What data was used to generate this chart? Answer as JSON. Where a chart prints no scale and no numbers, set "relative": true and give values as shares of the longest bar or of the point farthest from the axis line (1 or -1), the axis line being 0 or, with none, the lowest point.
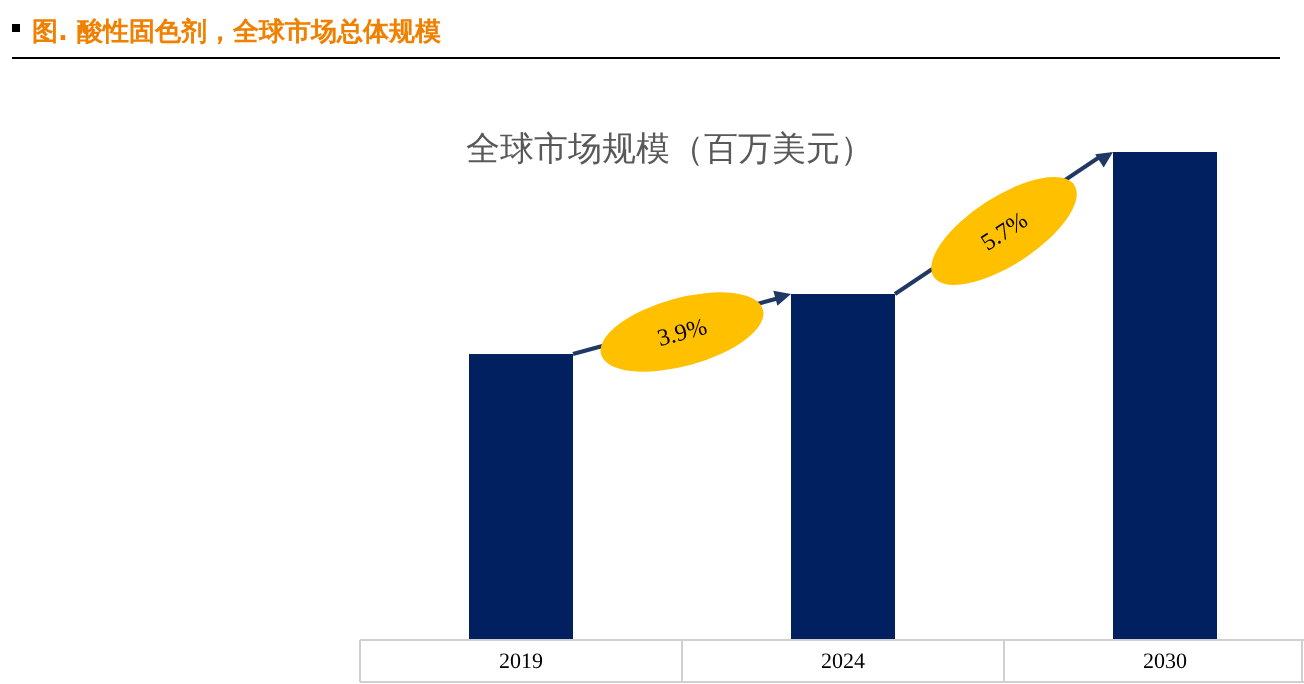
{
  "chart_data": {
    "type": "bar",
    "relative": true,
    "subtitle": "图.  酸性固色剂，全球市场总体规模",
    "title": "全球市场规模（百万美元）",
    "categories": [
      "2019",
      "2024",
      "2030"
    ],
    "values": [
      0.586,
      0.709,
      1
    ],
    "color": "#002060",
    "annotations": [
      "3.9%",
      "5.7%"
    ]
  }
}
